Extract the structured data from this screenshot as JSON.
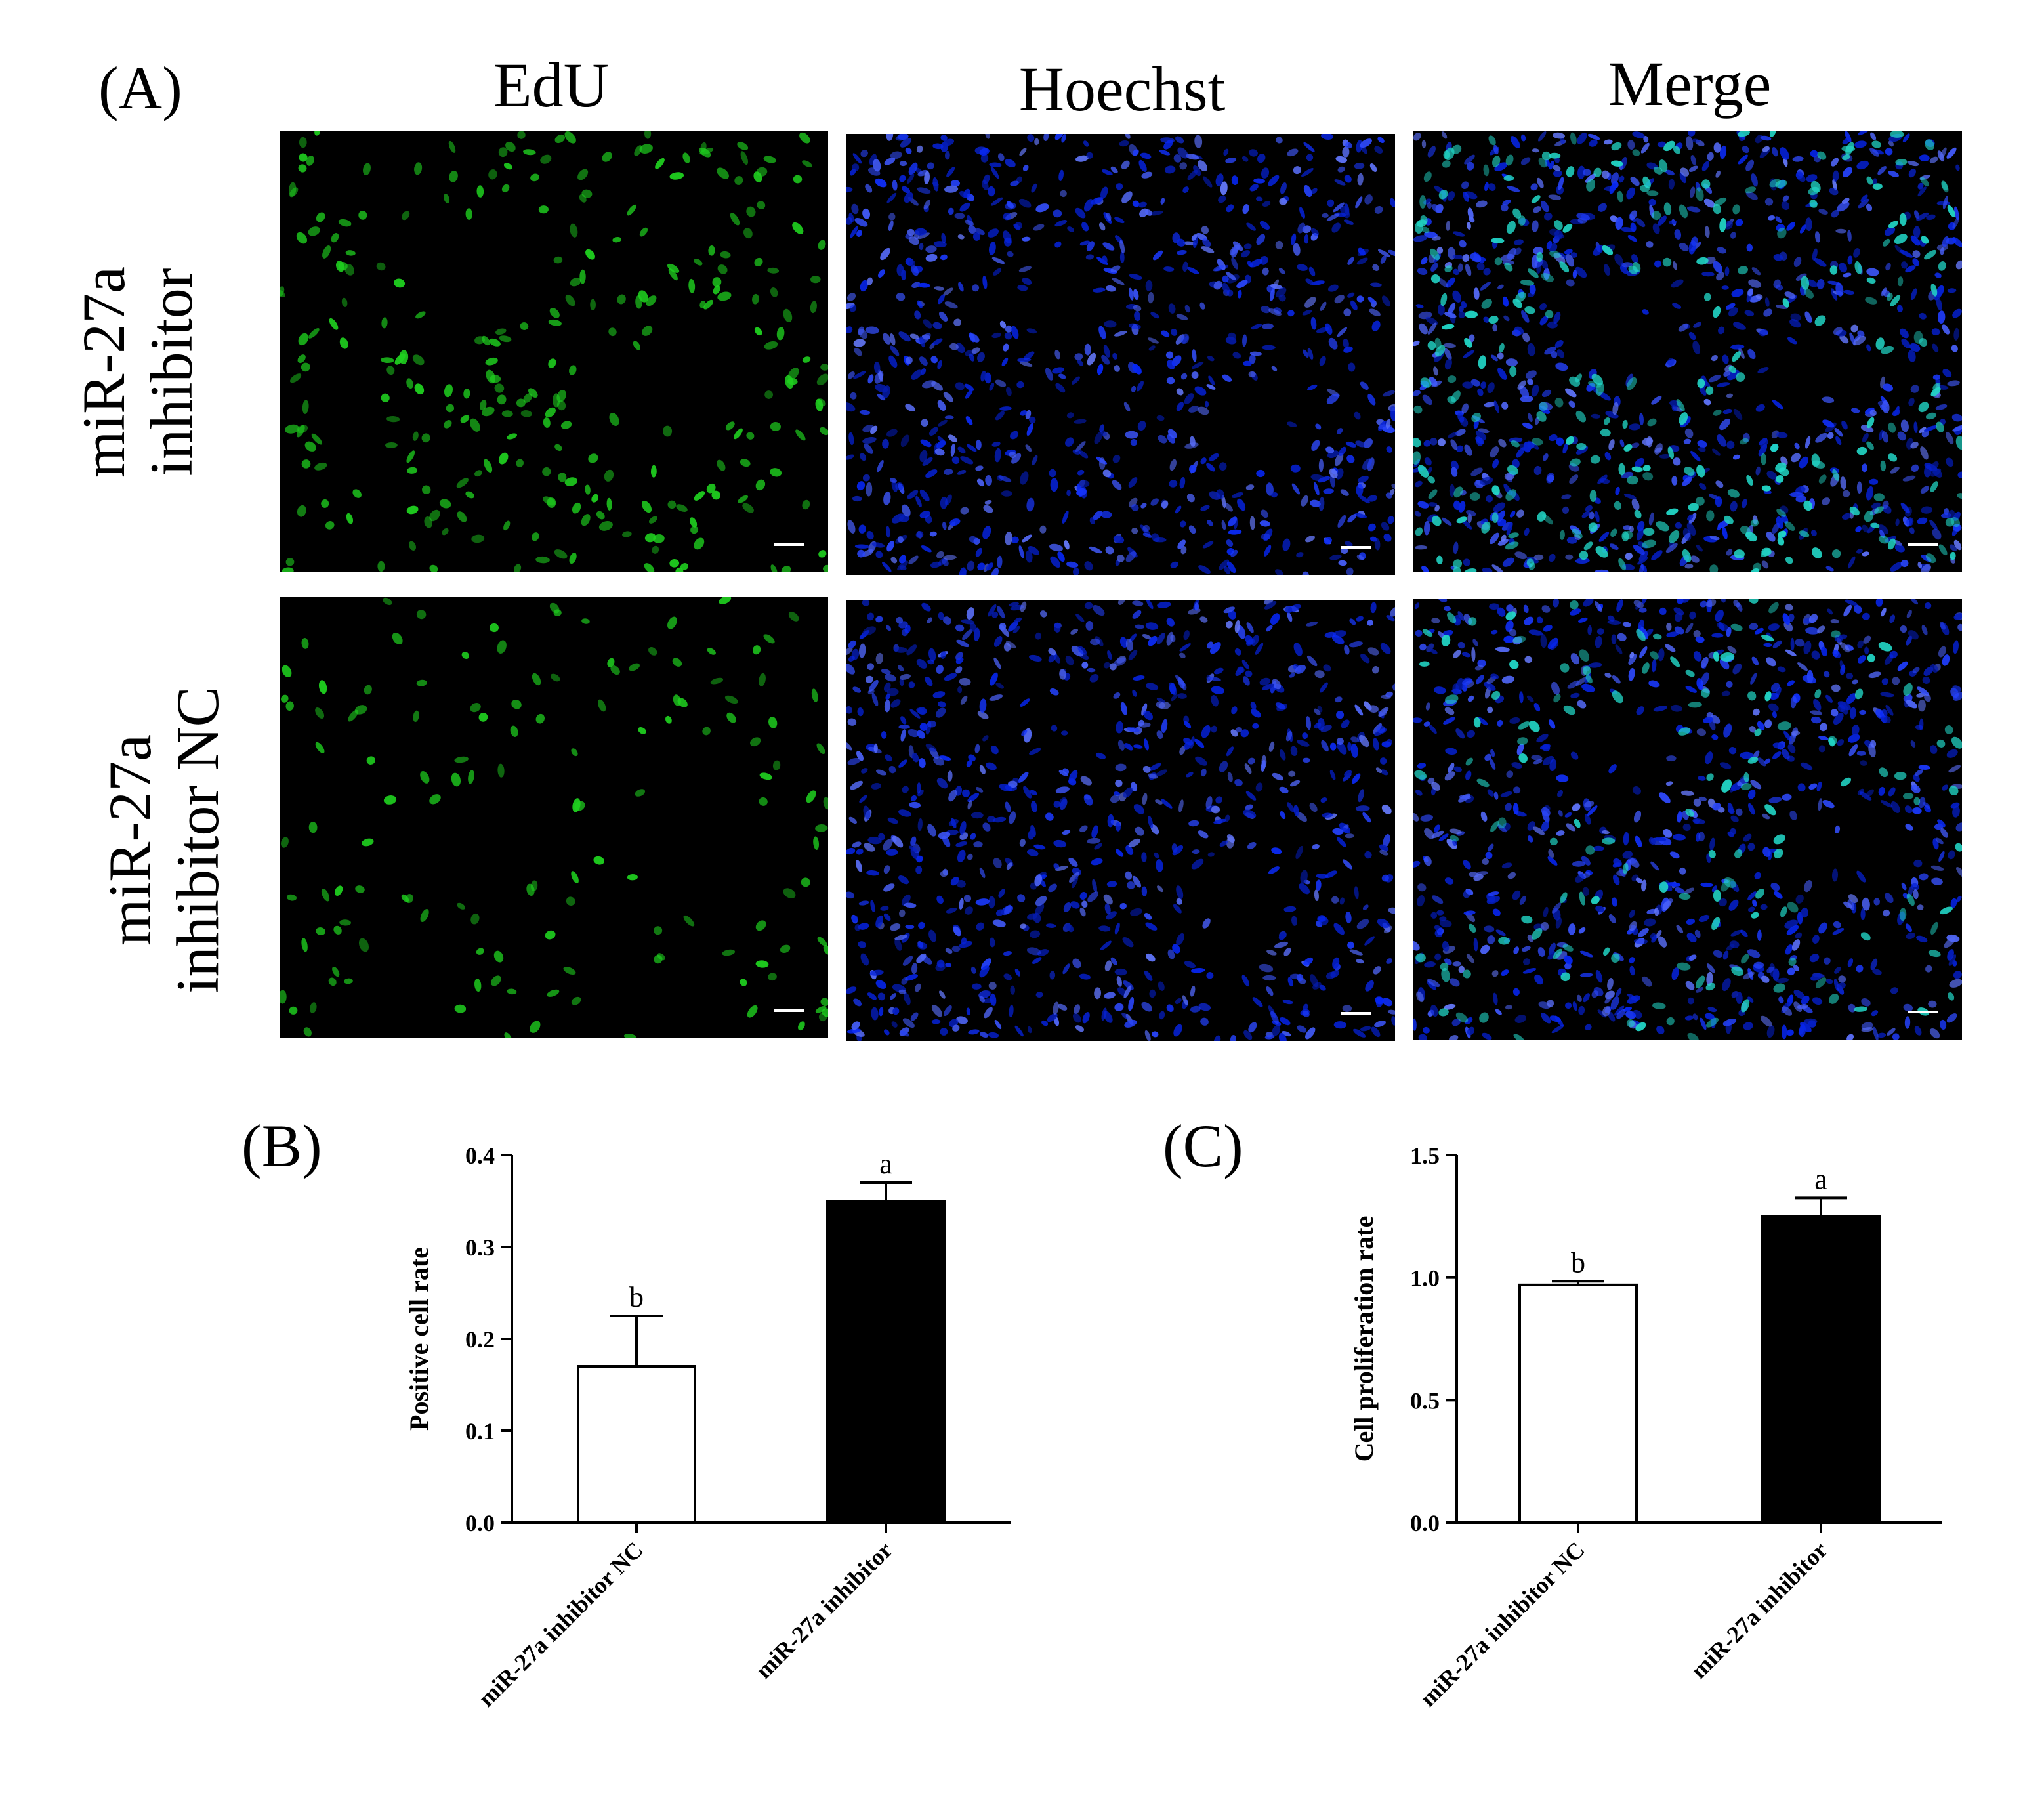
{
  "panel_a": {
    "label": "(A)",
    "columns": [
      "EdU",
      "Hoechst",
      "Merge"
    ],
    "rows": [
      {
        "line1": "miR-27a",
        "line2": "inhibitor"
      },
      {
        "line1": "miR-27a",
        "line2": "inhibitor NC"
      }
    ],
    "channel_colors": {
      "edu": "#1fd11f",
      "hoechst": "#1f2fe6",
      "merge_edu": "#22d8c8",
      "background": "#000000"
    }
  },
  "chart_data": [
    {
      "panel": "(B)",
      "type": "bar",
      "categories": [
        "miR-27a inhibitor NC",
        "miR-27a inhibitor"
      ],
      "values": [
        0.17,
        0.35
      ],
      "errors": [
        0.055,
        0.02
      ],
      "significance": [
        "b",
        "a"
      ],
      "bar_colors": [
        "#ffffff",
        "#000000"
      ],
      "ylabel": "Positive cell rate",
      "ylim": [
        0,
        0.4
      ],
      "yticks": [
        "0.0",
        "0.1",
        "0.2",
        "0.3",
        "0.4"
      ]
    },
    {
      "panel": "(C)",
      "type": "bar",
      "categories": [
        "miR-27a inhibitor NC",
        "miR-27a inhibitor"
      ],
      "values": [
        0.97,
        1.25
      ],
      "errors": [
        0.015,
        0.075
      ],
      "significance": [
        "b",
        "a"
      ],
      "bar_colors": [
        "#ffffff",
        "#000000"
      ],
      "ylabel": "Cell proliferation rate",
      "ylim": [
        0,
        1.5
      ],
      "yticks": [
        "0.0",
        "0.5",
        "1.0",
        "1.5"
      ]
    }
  ]
}
